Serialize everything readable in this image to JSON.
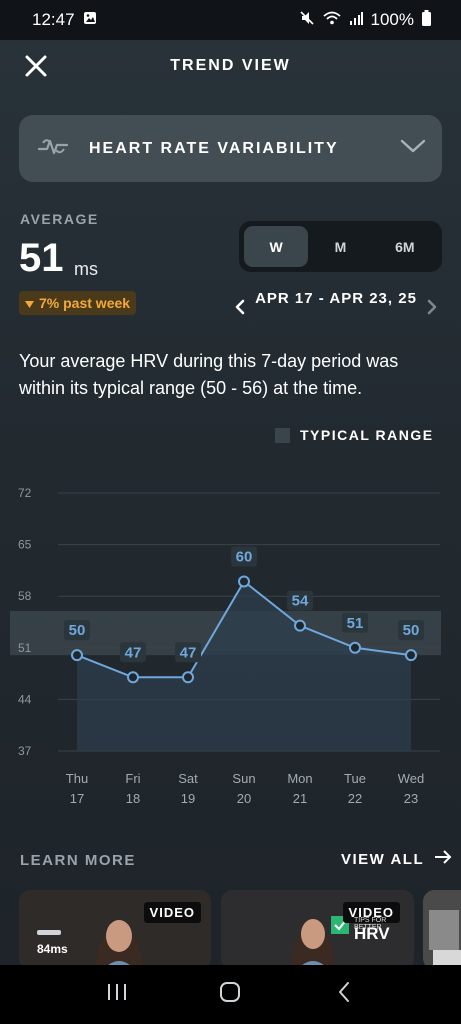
{
  "status_bar": {
    "time": "12:47",
    "battery": "100%",
    "icons": [
      "gallery-icon",
      "mute-icon",
      "wifi-icon",
      "signal-icon",
      "battery-icon"
    ]
  },
  "header": {
    "title": "TREND VIEW",
    "close_icon": "close-icon"
  },
  "metric_selector": {
    "label": "HEART RATE VARIABILITY",
    "icon": "hrv-icon",
    "chevron": "chevron-down-icon"
  },
  "average": {
    "caption": "AVERAGE",
    "value": "51",
    "unit": "ms",
    "change": "7% past week",
    "change_direction": "down"
  },
  "period": {
    "options": [
      "W",
      "M",
      "6M"
    ],
    "selected": "W"
  },
  "date_range": {
    "label": "APR 17 - APR 23, 25"
  },
  "summary": "Your average HRV during this 7-day period was within its typical range (50 - 56) at the time.",
  "legend": {
    "label": "TYPICAL RANGE"
  },
  "colors": {
    "accent": "#6fa8dc",
    "badge_bg": "#4a3a1a",
    "badge_text": "#f2a93b",
    "typical_range": "#3a444b"
  },
  "chart_data": {
    "type": "line",
    "categories": [
      [
        "Thu",
        "17"
      ],
      [
        "Fri",
        "18"
      ],
      [
        "Sat",
        "19"
      ],
      [
        "Sun",
        "20"
      ],
      [
        "Mon",
        "21"
      ],
      [
        "Tue",
        "22"
      ],
      [
        "Wed",
        "23"
      ]
    ],
    "series": [
      {
        "values": [
          50,
          47,
          47,
          60,
          54,
          51,
          50
        ]
      }
    ],
    "y_ticks": [
      72,
      65,
      58,
      51,
      44,
      37
    ],
    "ylim": [
      37,
      72
    ],
    "typical_range": [
      50,
      56
    ],
    "data_labels": true,
    "grid": true
  },
  "learn_more": {
    "caption": "LEARN MORE",
    "view_all": "VIEW ALL",
    "cards": [
      {
        "badge": "VIDEO",
        "metric": "84ms"
      },
      {
        "badge": "VIDEO",
        "tag": "HRV",
        "subtitle": "TIPS FOR BETTER"
      },
      {}
    ]
  },
  "nav_bar": {
    "buttons": [
      "recents-icon",
      "home-icon",
      "back-icon"
    ]
  }
}
